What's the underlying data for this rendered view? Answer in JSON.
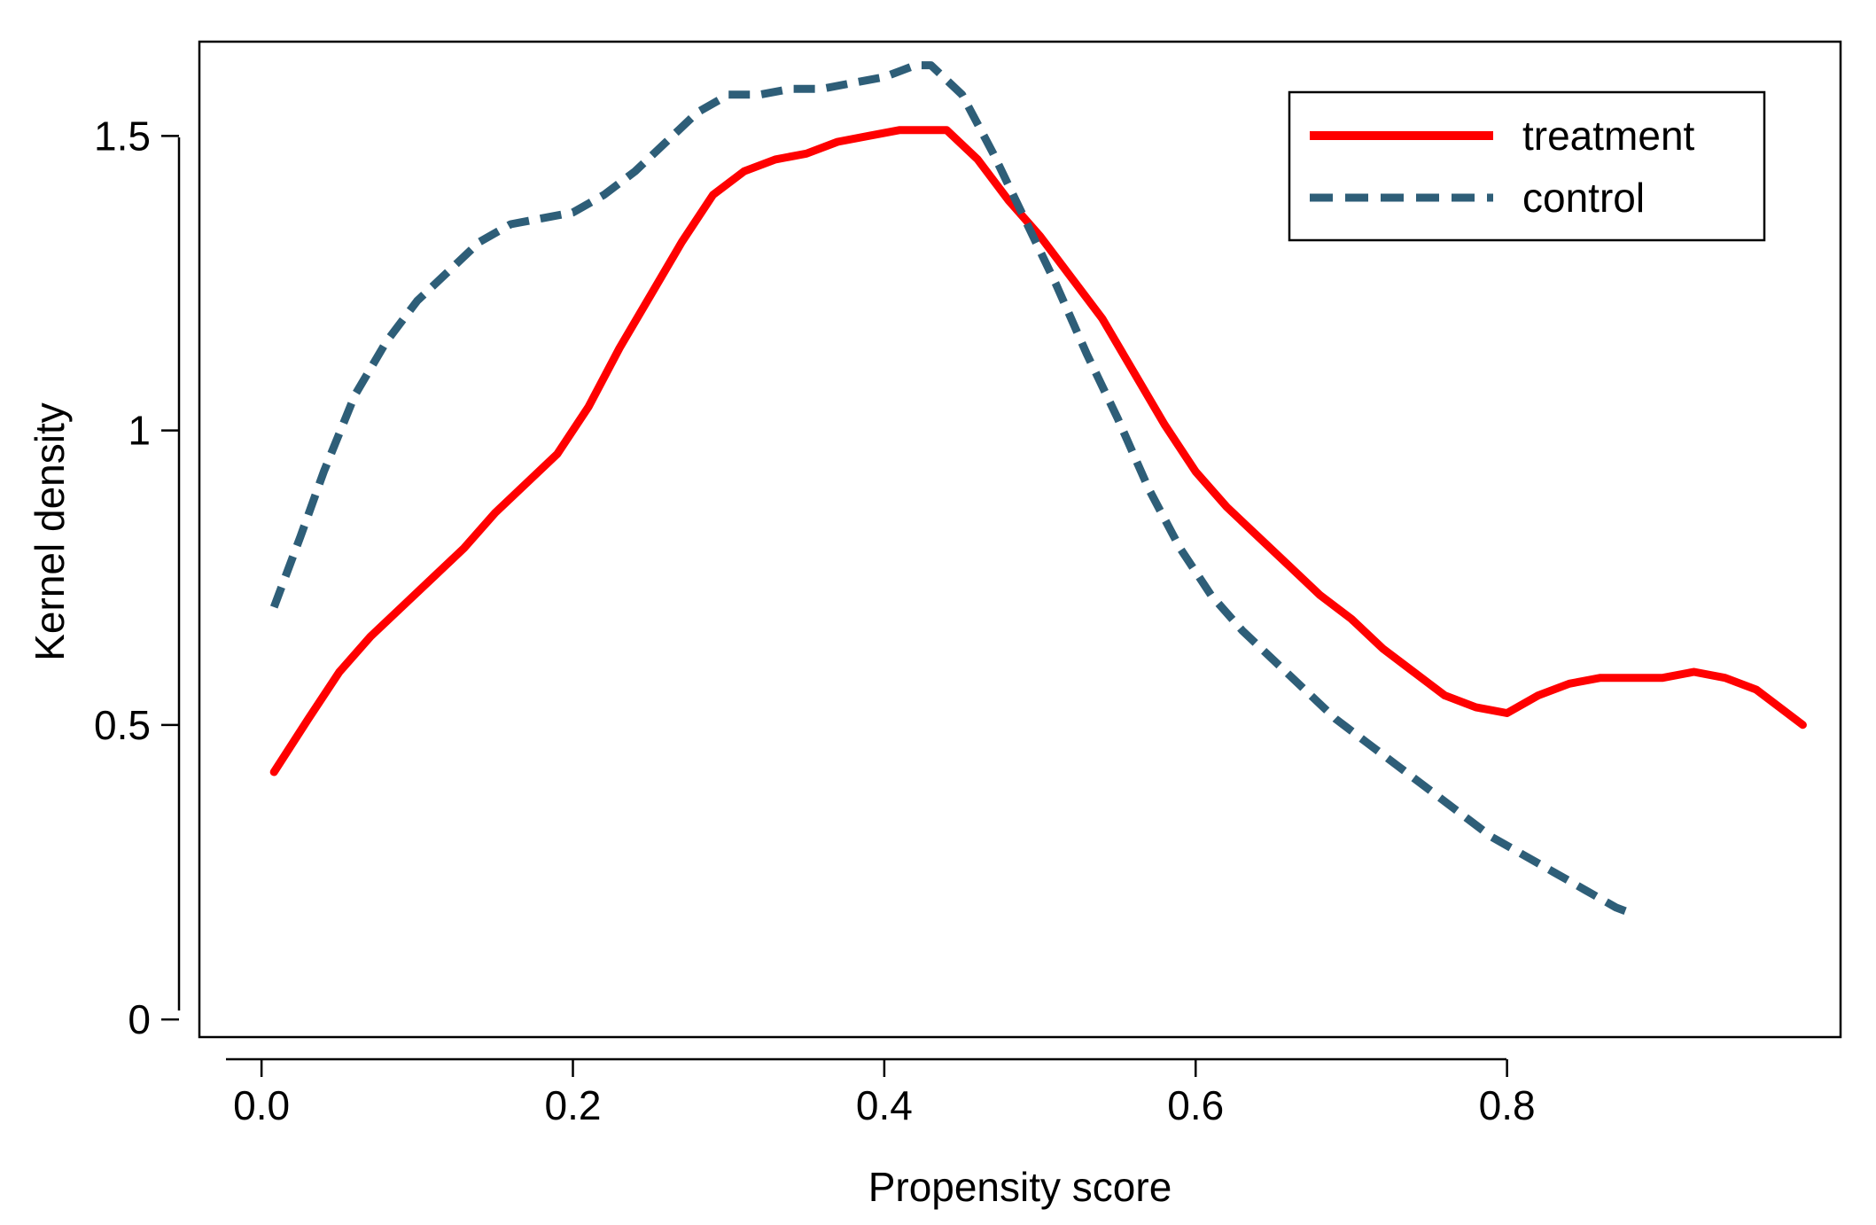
{
  "chart_data": {
    "type": "line",
    "title": "",
    "xlabel": "Propensity score",
    "ylabel": "Kernel density",
    "xlim": [
      -0.02,
      1.0
    ],
    "ylim": [
      -0.03,
      1.66
    ],
    "xticks": [
      {
        "value": 0.0,
        "label": "0.0"
      },
      {
        "value": 0.2,
        "label": "0.2"
      },
      {
        "value": 0.4,
        "label": "0.4"
      },
      {
        "value": 0.6,
        "label": "0.6"
      },
      {
        "value": 0.8,
        "label": "0.8"
      }
    ],
    "yticks": [
      {
        "value": 0,
        "label": "0"
      },
      {
        "value": 0.5,
        "label": "0.5"
      },
      {
        "value": 1.0,
        "label": "1"
      },
      {
        "value": 1.5,
        "label": "1.5"
      }
    ],
    "grid": false,
    "legend_position": "top-right",
    "series": [
      {
        "name": "treatment",
        "color": "#ff0000",
        "style": "solid",
        "x": [
          0.008,
          0.03,
          0.05,
          0.07,
          0.09,
          0.11,
          0.13,
          0.15,
          0.17,
          0.19,
          0.21,
          0.23,
          0.25,
          0.27,
          0.29,
          0.31,
          0.33,
          0.35,
          0.37,
          0.39,
          0.41,
          0.43,
          0.44,
          0.46,
          0.48,
          0.5,
          0.52,
          0.54,
          0.56,
          0.58,
          0.6,
          0.62,
          0.64,
          0.66,
          0.68,
          0.7,
          0.72,
          0.74,
          0.76,
          0.78,
          0.8,
          0.82,
          0.84,
          0.86,
          0.88,
          0.9,
          0.92,
          0.94,
          0.96,
          0.99
        ],
        "values": [
          0.42,
          0.51,
          0.59,
          0.65,
          0.7,
          0.75,
          0.8,
          0.86,
          0.91,
          0.96,
          1.04,
          1.14,
          1.23,
          1.32,
          1.4,
          1.44,
          1.46,
          1.47,
          1.49,
          1.5,
          1.51,
          1.51,
          1.51,
          1.46,
          1.39,
          1.33,
          1.26,
          1.19,
          1.1,
          1.01,
          0.93,
          0.87,
          0.82,
          0.77,
          0.72,
          0.68,
          0.63,
          0.59,
          0.55,
          0.53,
          0.52,
          0.55,
          0.57,
          0.58,
          0.58,
          0.58,
          0.59,
          0.58,
          0.56,
          0.5
        ]
      },
      {
        "name": "control",
        "color": "#2e5e78",
        "style": "dashed",
        "x": [
          0.008,
          0.025,
          0.04,
          0.06,
          0.08,
          0.1,
          0.12,
          0.14,
          0.16,
          0.18,
          0.2,
          0.22,
          0.24,
          0.26,
          0.28,
          0.3,
          0.32,
          0.34,
          0.36,
          0.38,
          0.4,
          0.42,
          0.43,
          0.45,
          0.47,
          0.49,
          0.51,
          0.53,
          0.55,
          0.57,
          0.59,
          0.61,
          0.63,
          0.65,
          0.67,
          0.69,
          0.71,
          0.73,
          0.75,
          0.77,
          0.79,
          0.81,
          0.83,
          0.85,
          0.87,
          0.88
        ],
        "values": [
          0.7,
          0.82,
          0.93,
          1.06,
          1.15,
          1.22,
          1.27,
          1.32,
          1.35,
          1.36,
          1.37,
          1.4,
          1.44,
          1.49,
          1.54,
          1.57,
          1.57,
          1.58,
          1.58,
          1.59,
          1.6,
          1.62,
          1.62,
          1.57,
          1.47,
          1.36,
          1.25,
          1.13,
          1.02,
          0.9,
          0.8,
          0.72,
          0.66,
          0.61,
          0.56,
          0.51,
          0.47,
          0.43,
          0.39,
          0.35,
          0.31,
          0.28,
          0.25,
          0.22,
          0.19,
          0.18
        ]
      }
    ]
  }
}
